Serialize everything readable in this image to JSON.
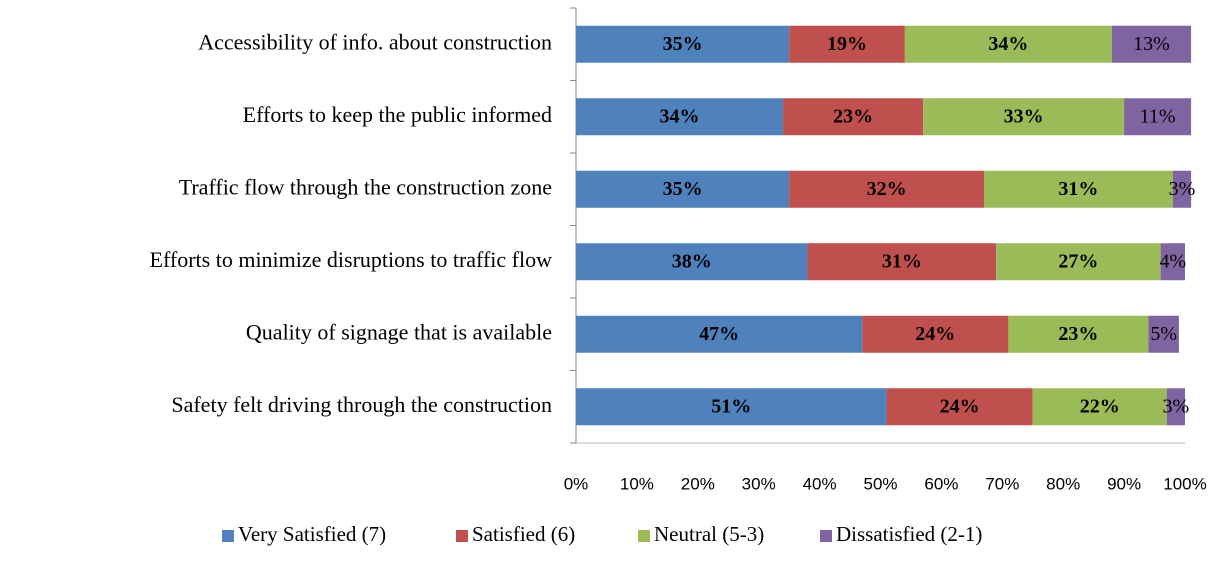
{
  "chart_data": {
    "type": "bar",
    "orientation": "horizontal",
    "stacked": true,
    "categories": [
      "Accessibility of info. about construction",
      "Efforts to keep the public informed",
      "Traffic flow through the construction zone",
      "Efforts to minimize disruptions to traffic flow",
      "Quality of signage that is available",
      "Safety felt driving through the construction"
    ],
    "series": [
      {
        "name": "Very Satisfied (7)",
        "color": "#4f81bd",
        "values": [
          35,
          34,
          35,
          38,
          47,
          51
        ],
        "value_labels": [
          "35%",
          "34%",
          "35%",
          "38%",
          "47%",
          "51%"
        ]
      },
      {
        "name": "Satisfied (6)",
        "color": "#c0504d",
        "values": [
          19,
          23,
          32,
          31,
          24,
          24
        ],
        "value_labels": [
          "19%",
          "23%",
          "32%",
          "31%",
          "24%",
          "24%"
        ]
      },
      {
        "name": "Neutral (5-3)",
        "color": "#9bbb59",
        "values": [
          34,
          33,
          31,
          27,
          23,
          22
        ],
        "value_labels": [
          "34%",
          "33%",
          "31%",
          "27%",
          "23%",
          "22%"
        ]
      },
      {
        "name": "Dissatisfied (2-1)",
        "color": "#8064a2",
        "values": [
          13,
          11,
          3,
          4,
          5,
          3
        ],
        "value_labels": [
          "13%",
          "11%",
          "3%",
          "4%",
          "5%",
          "3%"
        ]
      }
    ],
    "xlim": [
      0,
      100
    ],
    "xticks": [
      {
        "value": 0,
        "label": "0%"
      },
      {
        "value": 10,
        "label": "10%"
      },
      {
        "value": 20,
        "label": "20%"
      },
      {
        "value": 30,
        "label": "30%"
      },
      {
        "value": 40,
        "label": "40%"
      },
      {
        "value": 50,
        "label": "50%"
      },
      {
        "value": 60,
        "label": "60%"
      },
      {
        "value": 70,
        "label": "70%"
      },
      {
        "value": 80,
        "label": "80%"
      },
      {
        "value": 90,
        "label": "90%"
      },
      {
        "value": 100,
        "label": "100%"
      }
    ],
    "legend": "bottom"
  }
}
